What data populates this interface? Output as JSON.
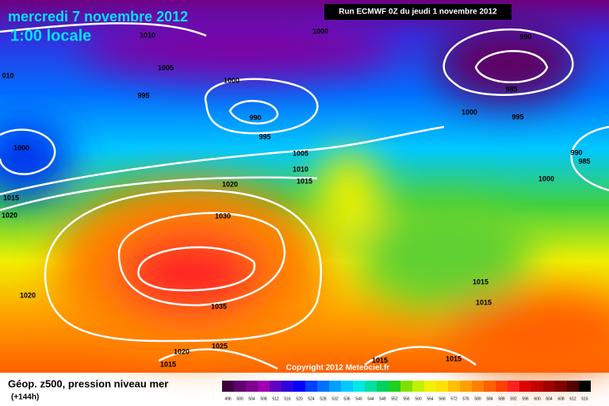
{
  "header": {
    "title": "mercredi 7 novembre 2012",
    "subtitle": "1:00 locale",
    "run": "Run ECMWF 0Z du jeudi 1 novembre 2012"
  },
  "isobar_labels": [
    1010,
    1000,
    990,
    1005,
    "010",
    1000,
    995,
    985,
    990,
    1000,
    995,
    995,
    1000,
    990,
    985,
    1005,
    1010,
    1015,
    1020,
    1000,
    1015,
    1020,
    1030,
    1035,
    1020,
    1015,
    1015,
    1020,
    1025,
    1015,
    1015,
    1015
  ],
  "copyright": "Copyright 2012 Meteociel.fr",
  "footer": {
    "title": "Géop. z500, pression niveau mer",
    "lead": "(+144h)"
  },
  "legend": {
    "labels": [
      496,
      500,
      504,
      508,
      512,
      516,
      520,
      524,
      528,
      532,
      536,
      540,
      544,
      548,
      552,
      556,
      560,
      564,
      568,
      572,
      576,
      580,
      584,
      588,
      592,
      596,
      600,
      604,
      608,
      612,
      616
    ],
    "colors": [
      "#400040",
      "#600070",
      "#800090",
      "#a000b0",
      "#6000c0",
      "#3000e0",
      "#0000ff",
      "#0040ff",
      "#0070ff",
      "#00a0ff",
      "#00c8ff",
      "#00e8e8",
      "#00e0a0",
      "#00d060",
      "#20d020",
      "#80e000",
      "#c0f000",
      "#f0f000",
      "#ffe000",
      "#ffc000",
      "#ffa000",
      "#ff8000",
      "#ff6000",
      "#ff4000",
      "#ff2020",
      "#e00000",
      "#c00000",
      "#a00000",
      "#800000",
      "#500000",
      "#000000"
    ]
  }
}
